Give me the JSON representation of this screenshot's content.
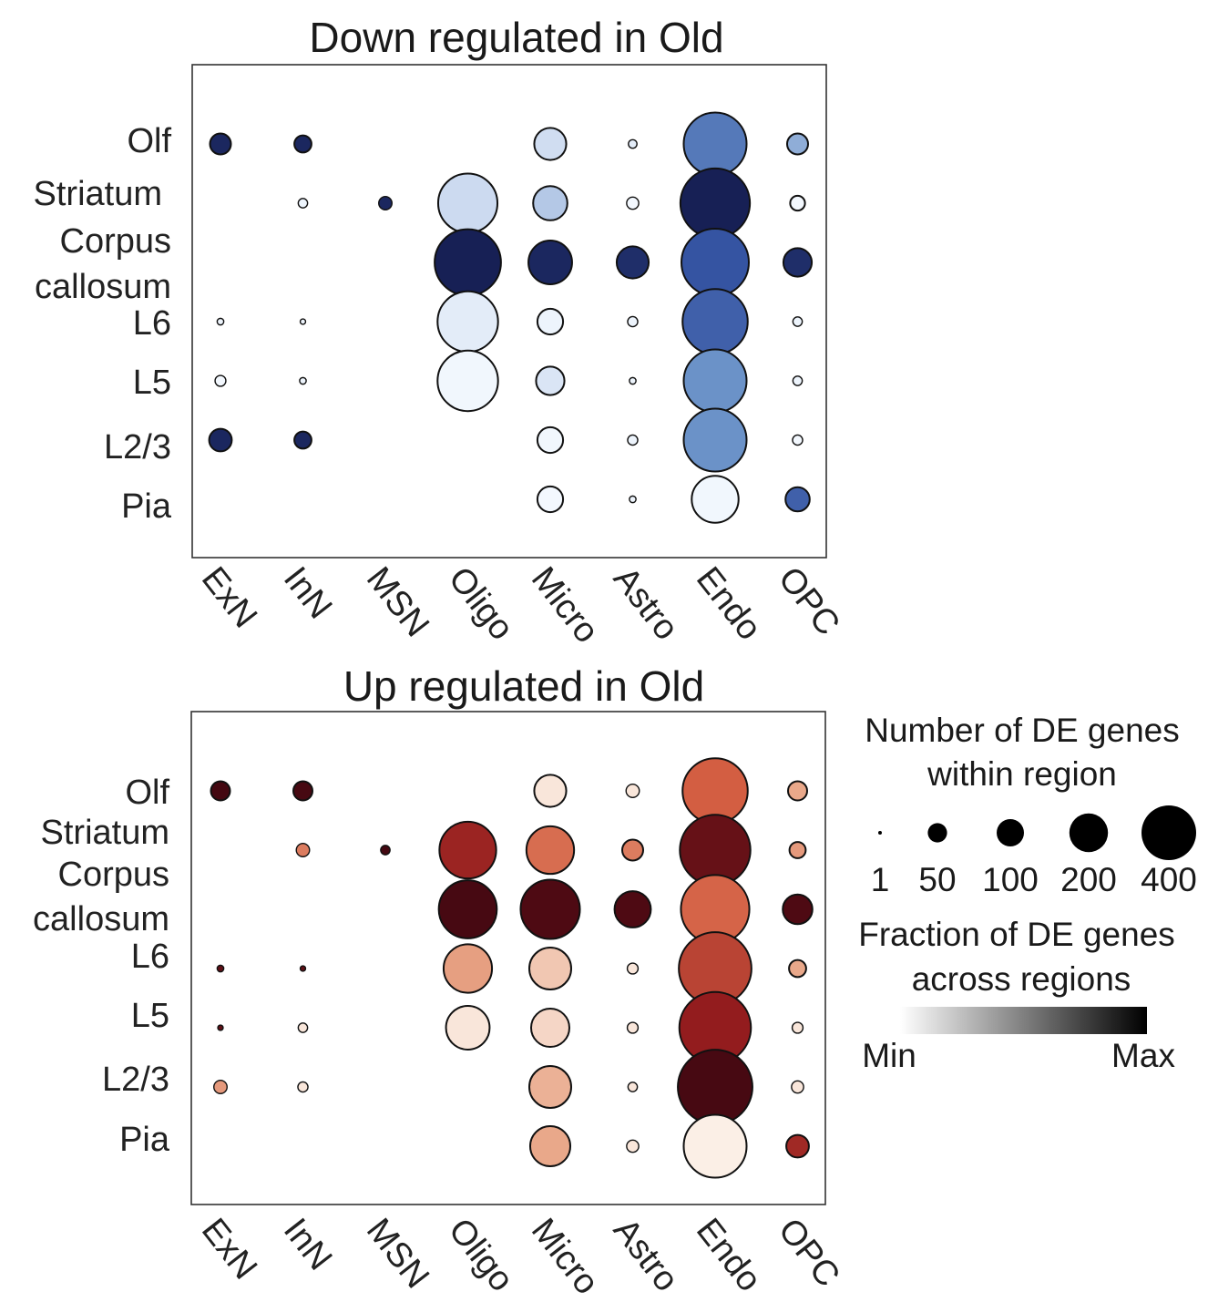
{
  "chart_data": [
    {
      "type": "scatter",
      "title": "Down regulated in Old",
      "x_categories": [
        "ExN",
        "InN",
        "MSN",
        "Oligo",
        "Micro",
        "Astro",
        "Endo",
        "OPC"
      ],
      "y_categories": [
        "Olf",
        "Striatum",
        "Corpus callosum",
        "L6",
        "L5",
        "L2/3",
        "Pia"
      ],
      "palette": [
        "#f7fbff",
        "#c6d6ee",
        "#6b92c8",
        "#3554a2",
        "#141c4e"
      ],
      "points": [
        {
          "x": "ExN",
          "y": "Olf",
          "n": 30,
          "fraction": 0.95
        },
        {
          "x": "InN",
          "y": "Olf",
          "n": 20,
          "fraction": 0.95
        },
        {
          "x": "Micro",
          "y": "Olf",
          "n": 70,
          "fraction": 0.2
        },
        {
          "x": "Astro",
          "y": "Olf",
          "n": 5,
          "fraction": 0.1
        },
        {
          "x": "Endo",
          "y": "Olf",
          "n": 270,
          "fraction": 0.6
        },
        {
          "x": "OPC",
          "y": "Olf",
          "n": 30,
          "fraction": 0.4
        },
        {
          "x": "InN",
          "y": "Striatum",
          "n": 6,
          "fraction": 0.05
        },
        {
          "x": "MSN",
          "y": "Striatum",
          "n": 12,
          "fraction": 0.95
        },
        {
          "x": "Oligo",
          "y": "Striatum",
          "n": 240,
          "fraction": 0.22
        },
        {
          "x": "Micro",
          "y": "Striatum",
          "n": 80,
          "fraction": 0.3
        },
        {
          "x": "Astro",
          "y": "Striatum",
          "n": 10,
          "fraction": 0.02
        },
        {
          "x": "Endo",
          "y": "Striatum",
          "n": 330,
          "fraction": 0.98
        },
        {
          "x": "OPC",
          "y": "Striatum",
          "n": 15,
          "fraction": 0.02
        },
        {
          "x": "Oligo",
          "y": "Corpus callosum",
          "n": 300,
          "fraction": 0.98
        },
        {
          "x": "Micro",
          "y": "Corpus callosum",
          "n": 130,
          "fraction": 0.95
        },
        {
          "x": "Astro",
          "y": "Corpus callosum",
          "n": 70,
          "fraction": 0.92
        },
        {
          "x": "Endo",
          "y": "Corpus callosum",
          "n": 310,
          "fraction": 0.75
        },
        {
          "x": "OPC",
          "y": "Corpus callosum",
          "n": 55,
          "fraction": 0.92
        },
        {
          "x": "ExN",
          "y": "L6",
          "n": 3,
          "fraction": 0.05
        },
        {
          "x": "InN",
          "y": "L6",
          "n": 2,
          "fraction": 0.05
        },
        {
          "x": "Oligo",
          "y": "L6",
          "n": 250,
          "fraction": 0.1
        },
        {
          "x": "Micro",
          "y": "L6",
          "n": 45,
          "fraction": 0.05
        },
        {
          "x": "Astro",
          "y": "L6",
          "n": 7,
          "fraction": 0.05
        },
        {
          "x": "Endo",
          "y": "L6",
          "n": 290,
          "fraction": 0.7
        },
        {
          "x": "OPC",
          "y": "L6",
          "n": 6,
          "fraction": 0.05
        },
        {
          "x": "ExN",
          "y": "L5",
          "n": 8,
          "fraction": 0.02
        },
        {
          "x": "InN",
          "y": "L5",
          "n": 3,
          "fraction": 0.05
        },
        {
          "x": "Oligo",
          "y": "L5",
          "n": 250,
          "fraction": 0.03
        },
        {
          "x": "Micro",
          "y": "L5",
          "n": 55,
          "fraction": 0.15
        },
        {
          "x": "Astro",
          "y": "L5",
          "n": 3,
          "fraction": 0.05
        },
        {
          "x": "Endo",
          "y": "L5",
          "n": 270,
          "fraction": 0.5
        },
        {
          "x": "OPC",
          "y": "L5",
          "n": 6,
          "fraction": 0.05
        },
        {
          "x": "ExN",
          "y": "L2/3",
          "n": 35,
          "fraction": 0.95
        },
        {
          "x": "InN",
          "y": "L2/3",
          "n": 20,
          "fraction": 0.95
        },
        {
          "x": "Micro",
          "y": "L2/3",
          "n": 45,
          "fraction": 0.03
        },
        {
          "x": "Astro",
          "y": "L2/3",
          "n": 7,
          "fraction": 0.05
        },
        {
          "x": "Endo",
          "y": "L2/3",
          "n": 270,
          "fraction": 0.5
        },
        {
          "x": "OPC",
          "y": "L2/3",
          "n": 7,
          "fraction": 0.02
        },
        {
          "x": "Micro",
          "y": "Pia",
          "n": 45,
          "fraction": 0.02
        },
        {
          "x": "Astro",
          "y": "Pia",
          "n": 3,
          "fraction": 0.05
        },
        {
          "x": "Endo",
          "y": "Pia",
          "n": 150,
          "fraction": 0.03
        },
        {
          "x": "OPC",
          "y": "Pia",
          "n": 40,
          "fraction": 0.7
        }
      ]
    },
    {
      "type": "scatter",
      "title": "Up regulated in Old",
      "x_categories": [
        "ExN",
        "InN",
        "MSN",
        "Oligo",
        "Micro",
        "Astro",
        "Endo",
        "OPC"
      ],
      "y_categories": [
        "Olf",
        "Striatum",
        "Corpus callosum",
        "L6",
        "L5",
        "L2/3",
        "Pia"
      ],
      "palette": [
        "#fdf5ee",
        "#e9a88a",
        "#d35e42",
        "#931c1e",
        "#3d0610"
      ],
      "points": [
        {
          "x": "ExN",
          "y": "Olf",
          "n": 25,
          "fraction": 0.98
        },
        {
          "x": "InN",
          "y": "Olf",
          "n": 25,
          "fraction": 0.97
        },
        {
          "x": "Micro",
          "y": "Olf",
          "n": 70,
          "fraction": 0.05
        },
        {
          "x": "Astro",
          "y": "Olf",
          "n": 12,
          "fraction": 0.05
        },
        {
          "x": "Endo",
          "y": "Olf",
          "n": 290,
          "fraction": 0.5
        },
        {
          "x": "OPC",
          "y": "Olf",
          "n": 25,
          "fraction": 0.25
        },
        {
          "x": "InN",
          "y": "Striatum",
          "n": 12,
          "fraction": 0.4
        },
        {
          "x": "MSN",
          "y": "Striatum",
          "n": 6,
          "fraction": 0.98
        },
        {
          "x": "Oligo",
          "y": "Striatum",
          "n": 220,
          "fraction": 0.72
        },
        {
          "x": "Micro",
          "y": "Striatum",
          "n": 155,
          "fraction": 0.45
        },
        {
          "x": "Astro",
          "y": "Striatum",
          "n": 30,
          "fraction": 0.4
        },
        {
          "x": "Endo",
          "y": "Striatum",
          "n": 340,
          "fraction": 0.88
        },
        {
          "x": "OPC",
          "y": "Striatum",
          "n": 18,
          "fraction": 0.3
        },
        {
          "x": "Oligo",
          "y": "Corpus callosum",
          "n": 230,
          "fraction": 0.97
        },
        {
          "x": "Micro",
          "y": "Corpus callosum",
          "n": 240,
          "fraction": 0.95
        },
        {
          "x": "Astro",
          "y": "Corpus callosum",
          "n": 90,
          "fraction": 0.95
        },
        {
          "x": "Endo",
          "y": "Corpus callosum",
          "n": 320,
          "fraction": 0.48
        },
        {
          "x": "OPC",
          "y": "Corpus callosum",
          "n": 60,
          "fraction": 0.95
        },
        {
          "x": "ExN",
          "y": "L6",
          "n": 3,
          "fraction": 0.9
        },
        {
          "x": "InN",
          "y": "L6",
          "n": 2,
          "fraction": 0.9
        },
        {
          "x": "Oligo",
          "y": "L6",
          "n": 160,
          "fraction": 0.28
        },
        {
          "x": "Micro",
          "y": "L6",
          "n": 120,
          "fraction": 0.15
        },
        {
          "x": "Astro",
          "y": "L6",
          "n": 8,
          "fraction": 0.05
        },
        {
          "x": "Endo",
          "y": "L6",
          "n": 360,
          "fraction": 0.6
        },
        {
          "x": "OPC",
          "y": "L6",
          "n": 20,
          "fraction": 0.25
        },
        {
          "x": "ExN",
          "y": "L5",
          "n": 2,
          "fraction": 0.9
        },
        {
          "x": "InN",
          "y": "L5",
          "n": 6,
          "fraction": 0.05
        },
        {
          "x": "Oligo",
          "y": "L5",
          "n": 130,
          "fraction": 0.05
        },
        {
          "x": "Micro",
          "y": "L5",
          "n": 100,
          "fraction": 0.1
        },
        {
          "x": "Astro",
          "y": "L5",
          "n": 8,
          "fraction": 0.05
        },
        {
          "x": "Endo",
          "y": "L5",
          "n": 350,
          "fraction": 0.75
        },
        {
          "x": "OPC",
          "y": "L5",
          "n": 8,
          "fraction": 0.05
        },
        {
          "x": "ExN",
          "y": "L2/3",
          "n": 12,
          "fraction": 0.3
        },
        {
          "x": "InN",
          "y": "L2/3",
          "n": 7,
          "fraction": 0.05
        },
        {
          "x": "Micro",
          "y": "L2/3",
          "n": 120,
          "fraction": 0.22
        },
        {
          "x": "Astro",
          "y": "L2/3",
          "n": 6,
          "fraction": 0.05
        },
        {
          "x": "Endo",
          "y": "L2/3",
          "n": 380,
          "fraction": 0.97
        },
        {
          "x": "OPC",
          "y": "L2/3",
          "n": 10,
          "fraction": 0.05
        },
        {
          "x": "Micro",
          "y": "Pia",
          "n": 110,
          "fraction": 0.25
        },
        {
          "x": "Astro",
          "y": "Pia",
          "n": 10,
          "fraction": 0.05
        },
        {
          "x": "Endo",
          "y": "Pia",
          "n": 270,
          "fraction": 0.02
        },
        {
          "x": "OPC",
          "y": "Pia",
          "n": 35,
          "fraction": 0.7
        }
      ]
    }
  ],
  "panel1": {
    "title": "Down regulated in Old",
    "y_labels": [
      "Olf",
      "Striatum",
      "Corpus",
      "callosum",
      "L6",
      "L5",
      "L2/3",
      "Pia"
    ],
    "x_labels": [
      "ExN",
      "InN",
      "MSN",
      "Oligo",
      "Micro",
      "Astro",
      "Endo",
      "OPC"
    ]
  },
  "panel2": {
    "title": "Up regulated in Old",
    "y_labels": [
      "Olf",
      "Striatum",
      "Corpus",
      "callosum",
      "L6",
      "L5",
      "L2/3",
      "Pia"
    ],
    "x_labels": [
      "ExN",
      "InN",
      "MSN",
      "Oligo",
      "Micro",
      "Astro",
      "Endo",
      "OPC"
    ]
  },
  "legend": {
    "size_title_line1": "Number of DE genes",
    "size_title_line2": "within region",
    "size_values": [
      1,
      50,
      100,
      200,
      400
    ],
    "size_labels": [
      "1",
      "50",
      "100",
      "200",
      "400"
    ],
    "color_title_line1": "Fraction of DE genes",
    "color_title_line2": "across regions",
    "color_min_label": "Min",
    "color_max_label": "Max",
    "gradient_colors": [
      "#ffffff",
      "#000000"
    ]
  }
}
